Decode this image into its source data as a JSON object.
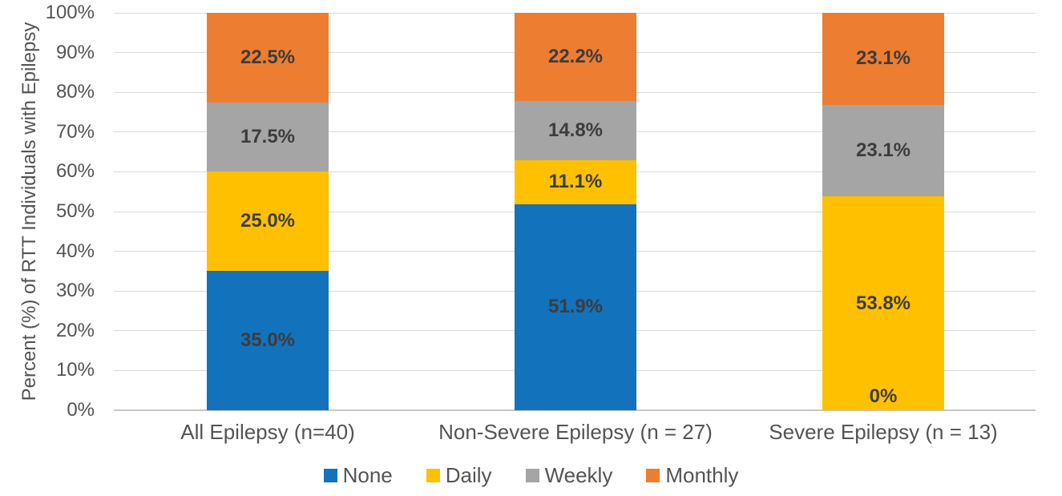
{
  "chart_data": {
    "type": "bar",
    "stacked": true,
    "title": "",
    "ylabel": "Percent (%) of RTT Individuals with Epilepsy",
    "xlabel": "",
    "ylim": [
      0,
      100
    ],
    "ytick_step": 10,
    "ytick_labels": [
      "0%",
      "10%",
      "20%",
      "30%",
      "40%",
      "50%",
      "60%",
      "70%",
      "80%",
      "90%",
      "100%"
    ],
    "grid": true,
    "categories": [
      "All Epilepsy (n=40)",
      "Non-Severe Epilepsy (n = 27)",
      "Severe Epilepsy (n = 13)"
    ],
    "series": [
      {
        "name": "None",
        "color": "#1272BC",
        "values": [
          35.0,
          51.9,
          0.0
        ],
        "labels": [
          "35.0%",
          "51.9%",
          "0%"
        ]
      },
      {
        "name": "Daily",
        "color": "#FFC000",
        "values": [
          25.0,
          11.1,
          53.8
        ],
        "labels": [
          "25.0%",
          "11.1%",
          "53.8%"
        ]
      },
      {
        "name": "Weekly",
        "color": "#A5A5A5",
        "values": [
          17.5,
          14.8,
          23.1
        ],
        "labels": [
          "17.5%",
          "14.8%",
          "23.1%"
        ]
      },
      {
        "name": "Monthly",
        "color": "#ED7D31",
        "values": [
          22.5,
          22.2,
          23.1
        ],
        "labels": [
          "22.5%",
          "22.2%",
          "23.1%"
        ]
      }
    ],
    "legend": {
      "position": "bottom",
      "items": [
        "None",
        "Daily",
        "Weekly",
        "Monthly"
      ]
    }
  },
  "colors": {
    "gridline": "#D9D9D9",
    "baseline": "#C6C6C6",
    "axis_text": "#545454",
    "data_label": "#3C3C3C",
    "background": "#FFFFFF"
  }
}
